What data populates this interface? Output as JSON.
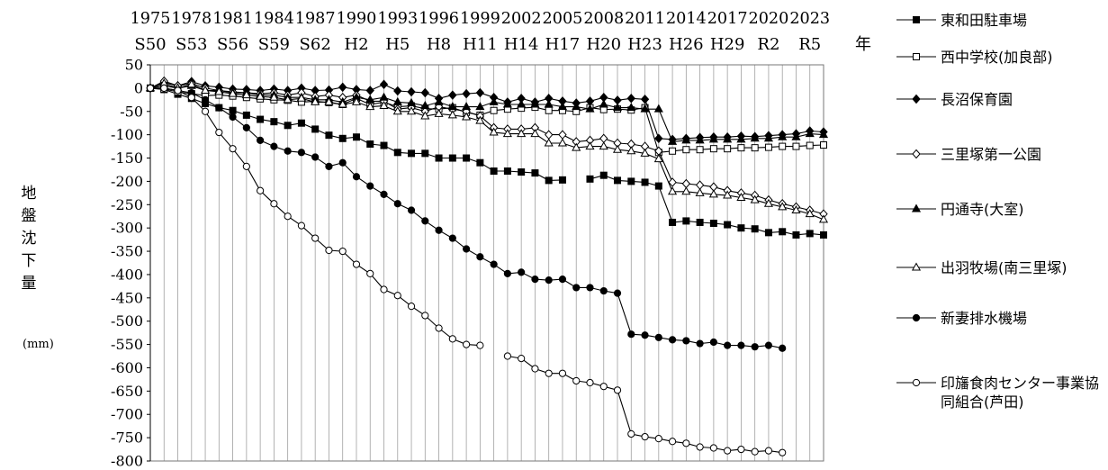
{
  "chart_data": {
    "type": "line",
    "title": "",
    "xlabel": "年",
    "ylabel_chars": [
      "地",
      "盤",
      "沈",
      "下",
      "量"
    ],
    "yunit": "(mm)",
    "ylim": [
      -800,
      50
    ],
    "yticks": [
      50,
      0,
      -50,
      -100,
      -150,
      -200,
      -250,
      -300,
      -350,
      -400,
      -450,
      -500,
      -550,
      -600,
      -650,
      -700,
      -750,
      -800
    ],
    "xlim": [
      1975,
      2024
    ],
    "xticks_top": [
      1975,
      1978,
      1981,
      1984,
      1987,
      1990,
      1993,
      1996,
      1999,
      2002,
      2005,
      2008,
      2011,
      2014,
      2017,
      2020,
      2023
    ],
    "xticks_bottom": [
      "S50",
      "S53",
      "S56",
      "S59",
      "S62",
      "H2",
      "H5",
      "H8",
      "H11",
      "H14",
      "H17",
      "H20",
      "H23",
      "H26",
      "H29",
      "R2",
      "R5"
    ],
    "grid": "vertical-yearly",
    "legend_position": "right",
    "series": [
      {
        "name": "東和田駐車場",
        "marker": "filled-square",
        "x": [
          1975,
          1976,
          1977,
          1978,
          1979,
          1980,
          1981,
          1982,
          1983,
          1984,
          1985,
          1986,
          1987,
          1988,
          1989,
          1990,
          1991,
          1992,
          1993,
          1994,
          1995,
          1996,
          1997,
          1998,
          1999,
          2000,
          2001,
          2002,
          2003,
          2004,
          2005,
          2006,
          2007,
          2008,
          2009,
          2010,
          2011,
          2012,
          2013,
          2014,
          2015,
          2016,
          2017,
          2018,
          2019,
          2020,
          2021,
          2022,
          2023,
          2024
        ],
        "values": [
          0,
          -3,
          -13,
          -22,
          -33,
          -42,
          -48,
          -58,
          -67,
          -72,
          -80,
          -75,
          -88,
          -101,
          -108,
          -105,
          -120,
          -123,
          -138,
          -140,
          -140,
          -150,
          -150,
          -150,
          -160,
          -178,
          -178,
          -180,
          -182,
          -198,
          -197,
          null,
          -195,
          -187,
          -198,
          -200,
          -202,
          -210,
          -288,
          -285,
          -288,
          -290,
          -293,
          -300,
          -302,
          -310,
          -308,
          -315,
          -312,
          -315
        ]
      },
      {
        "name": "西中学校(加良部)",
        "marker": "open-square",
        "x": [
          1975,
          1976,
          1977,
          1978,
          1979,
          1980,
          1981,
          1982,
          1983,
          1984,
          1985,
          1986,
          1987,
          1988,
          1989,
          1990,
          1991,
          1992,
          1993,
          1994,
          1995,
          1996,
          1997,
          1998,
          1999,
          2000,
          2001,
          2002,
          2003,
          2004,
          2005,
          2006,
          2007,
          2008,
          2009,
          2010,
          2011,
          2012,
          2013,
          2014,
          2015,
          2016,
          2017,
          2018,
          2019,
          2020,
          2021,
          2022,
          2023,
          2024
        ],
        "values": [
          0,
          -2,
          -8,
          -12,
          -16,
          -15,
          -17,
          -20,
          -23,
          -25,
          -26,
          -30,
          -28,
          -31,
          -35,
          -22,
          -35,
          -30,
          -40,
          -38,
          -44,
          -45,
          -42,
          -52,
          -58,
          -48,
          -45,
          -43,
          -41,
          -48,
          -48,
          -50,
          -42,
          -46,
          -45,
          -47,
          -42,
          -138,
          -135,
          -132,
          -132,
          -130,
          -130,
          -128,
          -128,
          -127,
          -125,
          -125,
          -123,
          -122
        ]
      },
      {
        "name": "長沼保育園",
        "marker": "filled-diamond",
        "x": [
          1975,
          1976,
          1977,
          1978,
          1979,
          1980,
          1981,
          1982,
          1983,
          1984,
          1985,
          1986,
          1987,
          1988,
          1989,
          1990,
          1991,
          1992,
          1993,
          1994,
          1995,
          1996,
          1997,
          1998,
          1999,
          2000,
          2001,
          2002,
          2003,
          2004,
          2005,
          2006,
          2007,
          2008,
          2009,
          2010,
          2011,
          2012,
          2013,
          2014,
          2015,
          2016,
          2017,
          2018,
          2019,
          2020,
          2021,
          2022,
          2023,
          2024
        ],
        "values": [
          0,
          12,
          5,
          14,
          5,
          2,
          -2,
          -3,
          -5,
          -2,
          -5,
          0,
          -5,
          -4,
          2,
          -3,
          -5,
          8,
          -6,
          -8,
          -10,
          -22,
          -15,
          -12,
          -10,
          -20,
          -30,
          -22,
          -30,
          -22,
          -28,
          -32,
          -28,
          -20,
          -26,
          -22,
          -24,
          -108,
          -110,
          -108,
          -106,
          -105,
          -105,
          -103,
          -104,
          -102,
          -100,
          -98,
          -92,
          -94
        ]
      },
      {
        "name": "三里塚第一公園",
        "marker": "open-diamond",
        "x": [
          1975,
          1976,
          1977,
          1978,
          1979,
          1980,
          1981,
          1982,
          1983,
          1984,
          1985,
          1986,
          1987,
          1988,
          1989,
          1990,
          1991,
          1992,
          1993,
          1994,
          1995,
          1996,
          1997,
          1998,
          1999,
          2000,
          2001,
          2002,
          2003,
          2004,
          2005,
          2006,
          2007,
          2008,
          2009,
          2010,
          2011,
          2012,
          2013,
          2014,
          2015,
          2016,
          2017,
          2018,
          2019,
          2020,
          2021,
          2022,
          2023,
          2024
        ],
        "values": [
          0,
          15,
          5,
          10,
          0,
          -5,
          -8,
          -10,
          -12,
          -10,
          -15,
          -10,
          -18,
          -15,
          -20,
          -15,
          -28,
          -28,
          -45,
          -42,
          -50,
          -40,
          -45,
          -50,
          -60,
          -85,
          -88,
          -88,
          -85,
          -100,
          -100,
          -115,
          -112,
          -108,
          -118,
          -120,
          -125,
          -135,
          -202,
          -205,
          -208,
          -212,
          -220,
          -225,
          -230,
          -240,
          -248,
          -255,
          -262,
          -270
        ]
      },
      {
        "name": "円通寺(大室)",
        "marker": "filled-triangle",
        "x": [
          1975,
          1976,
          1977,
          1978,
          1979,
          1980,
          1981,
          1982,
          1983,
          1984,
          1985,
          1986,
          1987,
          1988,
          1989,
          1990,
          1991,
          1992,
          1993,
          1994,
          1995,
          1996,
          1997,
          1998,
          1999,
          2000,
          2001,
          2002,
          2003,
          2004,
          2005,
          2006,
          2007,
          2008,
          2009,
          2010,
          2011,
          2012,
          2013,
          2014,
          2015,
          2016,
          2017,
          2018,
          2019,
          2020,
          2021,
          2022,
          2023,
          2024
        ],
        "values": [
          0,
          5,
          0,
          5,
          -5,
          -5,
          -10,
          -10,
          -15,
          -15,
          -20,
          -20,
          -25,
          -25,
          -30,
          -20,
          -25,
          -20,
          -30,
          -32,
          -38,
          -30,
          -40,
          -40,
          -40,
          -30,
          -35,
          -35,
          -35,
          -35,
          -40,
          -40,
          -45,
          -35,
          -42,
          -42,
          -45,
          -45,
          -115,
          -112,
          -112,
          -110,
          -110,
          -110,
          -108,
          -108,
          -105,
          -105,
          -98,
          -100
        ]
      },
      {
        "name": "出羽牧場(南三里塚)",
        "marker": "open-triangle",
        "x": [
          1975,
          1976,
          1977,
          1978,
          1979,
          1980,
          1981,
          1982,
          1983,
          1984,
          1985,
          1986,
          1987,
          1988,
          1989,
          1990,
          1991,
          1992,
          1993,
          1994,
          1995,
          1996,
          1997,
          1998,
          1999,
          2000,
          2001,
          2002,
          2003,
          2004,
          2005,
          2006,
          2007,
          2008,
          2009,
          2010,
          2011,
          2012,
          2013,
          2014,
          2015,
          2016,
          2017,
          2018,
          2019,
          2020,
          2021,
          2022,
          2023,
          2024
        ],
        "values": [
          0,
          10,
          0,
          8,
          -5,
          -8,
          -12,
          -15,
          -18,
          -20,
          -25,
          -22,
          -30,
          -30,
          -35,
          -30,
          -40,
          -38,
          -50,
          -50,
          -60,
          -55,
          -58,
          -62,
          -70,
          -95,
          -98,
          -98,
          -98,
          -118,
          -118,
          -128,
          -125,
          -125,
          -132,
          -135,
          -140,
          -152,
          -222,
          -222,
          -225,
          -228,
          -230,
          -235,
          -240,
          -248,
          -255,
          -262,
          -270,
          -282
        ]
      },
      {
        "name": "新妻排水機場",
        "marker": "filled-circle",
        "x": [
          1975,
          1976,
          1977,
          1978,
          1979,
          1980,
          1981,
          1982,
          1983,
          1984,
          1985,
          1986,
          1987,
          1988,
          1989,
          1990,
          1991,
          1992,
          1993,
          1994,
          1995,
          1996,
          1997,
          1998,
          1999,
          2000,
          2001,
          2002,
          2003,
          2004,
          2005,
          2006,
          2007,
          2008,
          2009,
          2010,
          2011,
          2012,
          2013,
          2014,
          2015,
          2016,
          2017,
          2018,
          2019,
          2020,
          2021,
          2022,
          2023,
          2024
        ],
        "values": [
          0,
          0,
          -5,
          -10,
          -25,
          -42,
          -62,
          -85,
          -112,
          -125,
          -135,
          -138,
          -148,
          -168,
          -160,
          -190,
          -210,
          -228,
          -248,
          -262,
          -285,
          -305,
          -322,
          -345,
          -362,
          -378,
          -398,
          -395,
          -410,
          -412,
          -410,
          -428,
          -428,
          -435,
          -440,
          -528,
          -530,
          -535,
          -540,
          -542,
          -548,
          -545,
          -552,
          -552,
          -555,
          -552,
          -558,
          null,
          null,
          null
        ]
      },
      {
        "name": "印旛食肉センター事業協同組合(芦田)",
        "marker": "open-circle",
        "x": [
          1975,
          1976,
          1977,
          1978,
          1979,
          1980,
          1981,
          1982,
          1983,
          1984,
          1985,
          1986,
          1987,
          1988,
          1989,
          1990,
          1991,
          1992,
          1993,
          1994,
          1995,
          1996,
          1997,
          1998,
          1999,
          2000,
          2001,
          2002,
          2003,
          2004,
          2005,
          2006,
          2007,
          2008,
          2009,
          2010,
          2011,
          2012,
          2013,
          2014,
          2015,
          2016,
          2017,
          2018,
          2019,
          2020,
          2021,
          2022,
          2023,
          2024
        ],
        "values": [
          0,
          0,
          -5,
          -20,
          -50,
          -95,
          -130,
          -168,
          -220,
          -248,
          -275,
          -295,
          -322,
          -348,
          -350,
          -378,
          -398,
          -432,
          -445,
          -468,
          -488,
          -515,
          -538,
          -550,
          -552,
          null,
          -575,
          -580,
          -602,
          -612,
          -612,
          -628,
          -632,
          -640,
          -648,
          -742,
          -748,
          -752,
          -758,
          -762,
          -770,
          -772,
          -778,
          -775,
          -780,
          -778,
          -782,
          null,
          null,
          null
        ]
      }
    ]
  }
}
